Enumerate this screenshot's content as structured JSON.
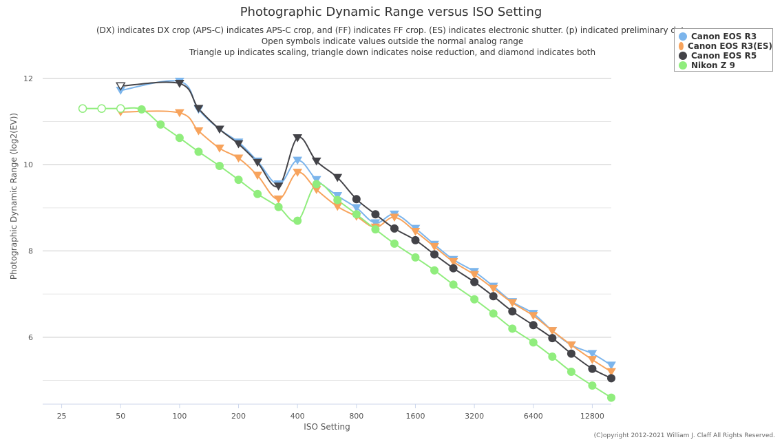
{
  "chart_data": {
    "type": "line",
    "title": "Photographic Dynamic Range versus ISO Setting",
    "subtitle_lines": [
      "(DX) indicates DX crop (APS-C) indicates APS-C crop, and (FF) indicates FF crop. (ES) indicates electronic shutter. (p) indicated preliminary data",
      "Open symbols indicate values outside the normal analog range",
      "Triangle up indicates scaling, triangle down indicates noise reduction, and diamond indicates both"
    ],
    "xlabel": "ISO Setting",
    "ylabel": "Photographic Dynamic Range (log2(EV))",
    "x_scale": "log2",
    "xlim": [
      20,
      16000
    ],
    "ylim": [
      4.45,
      12.3
    ],
    "x_ticks": [
      25,
      50,
      100,
      200,
      400,
      800,
      1600,
      3200,
      6400,
      12800
    ],
    "y_ticks": [
      6,
      8,
      10,
      12
    ],
    "grid": true,
    "legend_position": "top-right",
    "series": [
      {
        "name": "Canon EOS R3",
        "color": "#7cb5ec",
        "points": [
          {
            "x": 50,
            "y": 11.72,
            "marker": "triangle-down",
            "open": false
          },
          {
            "x": 100,
            "y": 11.93,
            "marker": "triangle-down",
            "open": false
          },
          {
            "x": 125,
            "y": 11.28,
            "marker": "triangle-down",
            "open": false
          },
          {
            "x": 160,
            "y": 10.82,
            "marker": "triangle-down",
            "open": false
          },
          {
            "x": 200,
            "y": 10.52,
            "marker": "triangle-down",
            "open": false
          },
          {
            "x": 250,
            "y": 10.08,
            "marker": "triangle-down",
            "open": false
          },
          {
            "x": 320,
            "y": 9.55,
            "marker": "triangle-down",
            "open": false
          },
          {
            "x": 400,
            "y": 10.1,
            "marker": "triangle-down",
            "open": false
          },
          {
            "x": 500,
            "y": 9.65,
            "marker": "triangle-down",
            "open": false
          },
          {
            "x": 640,
            "y": 9.28,
            "marker": "triangle-down",
            "open": false
          },
          {
            "x": 800,
            "y": 9.0,
            "marker": "triangle-down",
            "open": false
          },
          {
            "x": 1000,
            "y": 8.65,
            "marker": "triangle-down",
            "open": false
          },
          {
            "x": 1250,
            "y": 8.85,
            "marker": "triangle-down",
            "open": false
          },
          {
            "x": 1600,
            "y": 8.52,
            "marker": "triangle-down",
            "open": false
          },
          {
            "x": 2000,
            "y": 8.15,
            "marker": "triangle-down",
            "open": false
          },
          {
            "x": 2500,
            "y": 7.8,
            "marker": "triangle-down",
            "open": false
          },
          {
            "x": 3200,
            "y": 7.52,
            "marker": "triangle-down",
            "open": false
          },
          {
            "x": 4000,
            "y": 7.18,
            "marker": "triangle-down",
            "open": false
          },
          {
            "x": 5000,
            "y": 6.82,
            "marker": "triangle-down",
            "open": false
          },
          {
            "x": 6400,
            "y": 6.55,
            "marker": "triangle-down",
            "open": false
          },
          {
            "x": 8000,
            "y": 6.15,
            "marker": "triangle-down",
            "open": false
          },
          {
            "x": 10000,
            "y": 5.82,
            "marker": "triangle-down",
            "open": false
          },
          {
            "x": 12800,
            "y": 5.62,
            "marker": "triangle-down",
            "open": false
          },
          {
            "x": 16000,
            "y": 5.35,
            "marker": "triangle-down",
            "open": false
          }
        ]
      },
      {
        "name": "Canon EOS R3(ES)",
        "color": "#f7a35c",
        "points": [
          {
            "x": 50,
            "y": 11.22,
            "marker": "triangle-down",
            "open": false
          },
          {
            "x": 100,
            "y": 11.2,
            "marker": "triangle-down",
            "open": false
          },
          {
            "x": 125,
            "y": 10.78,
            "marker": "triangle-down",
            "open": false
          },
          {
            "x": 160,
            "y": 10.38,
            "marker": "triangle-down",
            "open": false
          },
          {
            "x": 200,
            "y": 10.15,
            "marker": "triangle-down",
            "open": false
          },
          {
            "x": 250,
            "y": 9.75,
            "marker": "triangle-down",
            "open": false
          },
          {
            "x": 320,
            "y": 9.2,
            "marker": "triangle-down",
            "open": false
          },
          {
            "x": 400,
            "y": 9.82,
            "marker": "triangle-down",
            "open": false
          },
          {
            "x": 500,
            "y": 9.42,
            "marker": "triangle-down",
            "open": false
          },
          {
            "x": 640,
            "y": 9.03,
            "marker": "triangle-down",
            "open": false
          },
          {
            "x": 800,
            "y": 8.8,
            "marker": "triangle-down",
            "open": false
          },
          {
            "x": 1000,
            "y": 8.55,
            "marker": "triangle-down",
            "open": false
          },
          {
            "x": 1250,
            "y": 8.78,
            "marker": "triangle-down",
            "open": false
          },
          {
            "x": 1600,
            "y": 8.45,
            "marker": "triangle-down",
            "open": false
          },
          {
            "x": 2000,
            "y": 8.1,
            "marker": "triangle-down",
            "open": false
          },
          {
            "x": 2500,
            "y": 7.75,
            "marker": "triangle-down",
            "open": false
          },
          {
            "x": 3200,
            "y": 7.45,
            "marker": "triangle-down",
            "open": false
          },
          {
            "x": 4000,
            "y": 7.13,
            "marker": "triangle-down",
            "open": false
          },
          {
            "x": 5000,
            "y": 6.8,
            "marker": "triangle-down",
            "open": false
          },
          {
            "x": 6400,
            "y": 6.5,
            "marker": "triangle-down",
            "open": false
          },
          {
            "x": 8000,
            "y": 6.15,
            "marker": "triangle-down",
            "open": false
          },
          {
            "x": 10000,
            "y": 5.82,
            "marker": "triangle-down",
            "open": false
          },
          {
            "x": 12800,
            "y": 5.48,
            "marker": "triangle-down",
            "open": false
          },
          {
            "x": 16000,
            "y": 5.2,
            "marker": "triangle-down",
            "open": false
          }
        ]
      },
      {
        "name": "Canon EOS R5",
        "color": "#434348",
        "points": [
          {
            "x": 50,
            "y": 11.82,
            "marker": "triangle-down",
            "open": true
          },
          {
            "x": 100,
            "y": 11.88,
            "marker": "triangle-down",
            "open": false
          },
          {
            "x": 125,
            "y": 11.3,
            "marker": "triangle-down",
            "open": false
          },
          {
            "x": 160,
            "y": 10.82,
            "marker": "triangle-down",
            "open": false
          },
          {
            "x": 200,
            "y": 10.48,
            "marker": "triangle-down",
            "open": false
          },
          {
            "x": 250,
            "y": 10.05,
            "marker": "triangle-down",
            "open": false
          },
          {
            "x": 320,
            "y": 9.5,
            "marker": "triangle-down",
            "open": false
          },
          {
            "x": 400,
            "y": 10.62,
            "marker": "triangle-down",
            "open": false
          },
          {
            "x": 500,
            "y": 10.08,
            "marker": "triangle-down",
            "open": false
          },
          {
            "x": 640,
            "y": 9.7,
            "marker": "triangle-down",
            "open": false
          },
          {
            "x": 800,
            "y": 9.2,
            "marker": "circle",
            "open": false
          },
          {
            "x": 1000,
            "y": 8.85,
            "marker": "circle",
            "open": false
          },
          {
            "x": 1250,
            "y": 8.52,
            "marker": "circle",
            "open": false
          },
          {
            "x": 1600,
            "y": 8.25,
            "marker": "circle",
            "open": false
          },
          {
            "x": 2000,
            "y": 7.92,
            "marker": "circle",
            "open": false
          },
          {
            "x": 2500,
            "y": 7.6,
            "marker": "circle",
            "open": false
          },
          {
            "x": 3200,
            "y": 7.28,
            "marker": "circle",
            "open": false
          },
          {
            "x": 4000,
            "y": 6.95,
            "marker": "circle",
            "open": false
          },
          {
            "x": 5000,
            "y": 6.6,
            "marker": "circle",
            "open": false
          },
          {
            "x": 6400,
            "y": 6.28,
            "marker": "circle",
            "open": false
          },
          {
            "x": 8000,
            "y": 5.98,
            "marker": "circle",
            "open": false
          },
          {
            "x": 10000,
            "y": 5.62,
            "marker": "circle",
            "open": false
          },
          {
            "x": 12800,
            "y": 5.27,
            "marker": "circle",
            "open": false
          },
          {
            "x": 16000,
            "y": 5.05,
            "marker": "circle",
            "open": false
          }
        ]
      },
      {
        "name": "Nikon Z 9",
        "color": "#90ed7d",
        "points": [
          {
            "x": 32,
            "y": 11.3,
            "marker": "circle",
            "open": true
          },
          {
            "x": 40,
            "y": 11.3,
            "marker": "circle",
            "open": true
          },
          {
            "x": 50,
            "y": 11.3,
            "marker": "circle",
            "open": true
          },
          {
            "x": 64,
            "y": 11.28,
            "marker": "circle",
            "open": false
          },
          {
            "x": 80,
            "y": 10.93,
            "marker": "circle",
            "open": false
          },
          {
            "x": 100,
            "y": 10.62,
            "marker": "circle",
            "open": false
          },
          {
            "x": 125,
            "y": 10.3,
            "marker": "circle",
            "open": false
          },
          {
            "x": 160,
            "y": 9.97,
            "marker": "circle",
            "open": false
          },
          {
            "x": 200,
            "y": 9.65,
            "marker": "circle",
            "open": false
          },
          {
            "x": 250,
            "y": 9.32,
            "marker": "circle",
            "open": false
          },
          {
            "x": 320,
            "y": 9.02,
            "marker": "circle",
            "open": false
          },
          {
            "x": 400,
            "y": 8.7,
            "marker": "circle",
            "open": false
          },
          {
            "x": 500,
            "y": 9.55,
            "marker": "circle",
            "open": false
          },
          {
            "x": 640,
            "y": 9.18,
            "marker": "circle",
            "open": false
          },
          {
            "x": 800,
            "y": 8.85,
            "marker": "circle",
            "open": false
          },
          {
            "x": 1000,
            "y": 8.5,
            "marker": "circle",
            "open": false
          },
          {
            "x": 1250,
            "y": 8.17,
            "marker": "circle",
            "open": false
          },
          {
            "x": 1600,
            "y": 7.85,
            "marker": "circle",
            "open": false
          },
          {
            "x": 2000,
            "y": 7.55,
            "marker": "circle",
            "open": false
          },
          {
            "x": 2500,
            "y": 7.22,
            "marker": "circle",
            "open": false
          },
          {
            "x": 3200,
            "y": 6.88,
            "marker": "circle",
            "open": false
          },
          {
            "x": 4000,
            "y": 6.55,
            "marker": "circle",
            "open": false
          },
          {
            "x": 5000,
            "y": 6.2,
            "marker": "circle",
            "open": false
          },
          {
            "x": 6400,
            "y": 5.88,
            "marker": "circle",
            "open": false
          },
          {
            "x": 8000,
            "y": 5.55,
            "marker": "circle",
            "open": false
          },
          {
            "x": 10000,
            "y": 5.2,
            "marker": "circle",
            "open": false
          },
          {
            "x": 12800,
            "y": 4.88,
            "marker": "circle",
            "open": false
          },
          {
            "x": 16000,
            "y": 4.6,
            "marker": "circle",
            "open": false
          }
        ]
      }
    ]
  },
  "credit": "(C)opyright 2012-2021 William J. Claff All Rights Reserved."
}
